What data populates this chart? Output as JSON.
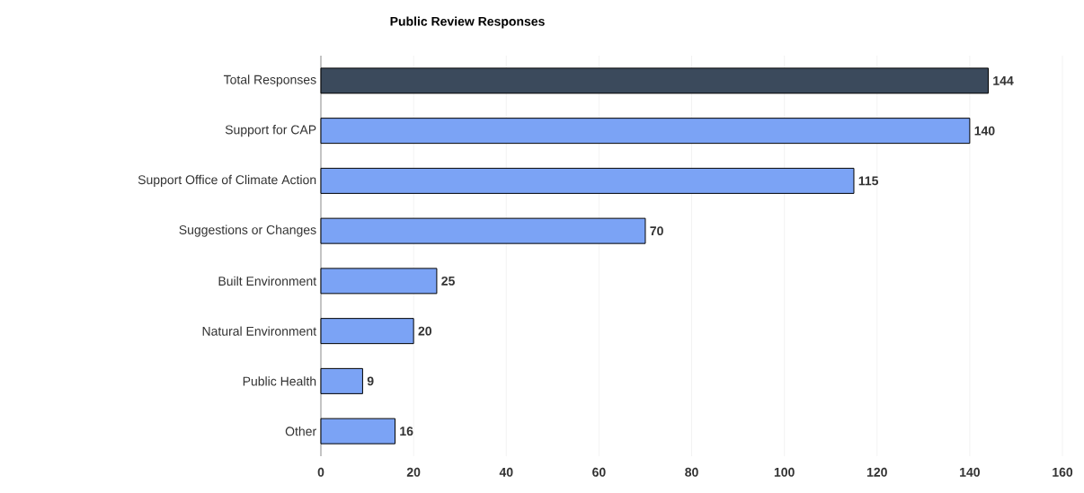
{
  "chart_data": {
    "type": "bar",
    "orientation": "horizontal",
    "title": "Public Review Responses",
    "categories": [
      "Total Responses",
      "Support for CAP",
      "Support Office of Climate Action",
      "Suggestions or Changes",
      "Built Environment",
      "Natural Environment",
      "Public Health",
      "Other"
    ],
    "values": [
      144,
      140,
      115,
      70,
      25,
      20,
      9,
      16
    ],
    "colors": [
      "#3b4a5c",
      "#7ba3f5",
      "#7ba3f5",
      "#7ba3f5",
      "#7ba3f5",
      "#7ba3f5",
      "#7ba3f5",
      "#7ba3f5"
    ],
    "xlim": [
      0,
      160
    ],
    "xticks": [
      0,
      20,
      40,
      60,
      80,
      100,
      120,
      140,
      160
    ],
    "grid": "x",
    "data_labels": true
  }
}
